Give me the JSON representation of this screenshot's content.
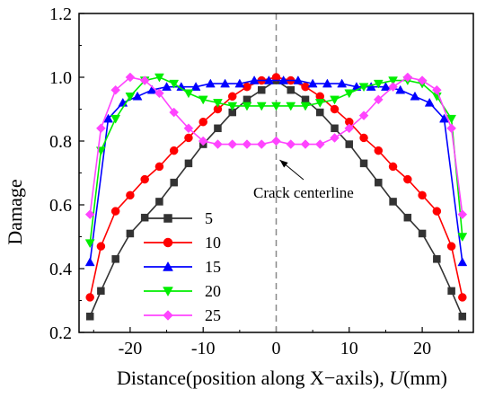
{
  "chart_data": {
    "type": "line",
    "xlabel": "Distance(position along X−axils), U(mm)",
    "xlabel_parts": {
      "prefix": "Distance(position along X−axils), ",
      "var": "U",
      "suffix": "(mm)"
    },
    "ylabel": "Damage",
    "xlim": [
      -27,
      27
    ],
    "ylim": [
      0.2,
      1.2
    ],
    "xticks": [
      -20,
      -10,
      0,
      10,
      20
    ],
    "yticks": [
      0.2,
      0.4,
      0.6,
      0.8,
      1.0,
      1.2
    ],
    "xtick_labels": [
      "-20",
      "-10",
      "0",
      "10",
      "20"
    ],
    "ytick_labels": [
      "0.2",
      "0.4",
      "0.6",
      "0.8",
      "1.0",
      "1.2"
    ],
    "grid": false,
    "legend_position": "bottom-left",
    "annotation": {
      "text": "Crack centerline",
      "x": 0
    },
    "series": [
      {
        "name": "5",
        "color": "#333333",
        "marker": "square",
        "x": [
          -25.5,
          -24,
          -22,
          -20,
          -18,
          -16,
          -14,
          -12,
          -10,
          -8,
          -6,
          -4,
          -2,
          0,
          2,
          4,
          6,
          8,
          10,
          12,
          14,
          16,
          18,
          20,
          22,
          24,
          25.5
        ],
        "y": [
          0.25,
          0.33,
          0.43,
          0.51,
          0.56,
          0.61,
          0.67,
          0.73,
          0.79,
          0.84,
          0.89,
          0.93,
          0.96,
          0.99,
          0.96,
          0.93,
          0.89,
          0.84,
          0.79,
          0.73,
          0.67,
          0.61,
          0.56,
          0.51,
          0.43,
          0.33,
          0.25
        ]
      },
      {
        "name": "10",
        "color": "#ff0000",
        "marker": "circle",
        "x": [
          -25.5,
          -24,
          -22,
          -20,
          -18,
          -16,
          -14,
          -12,
          -10,
          -8,
          -6,
          -4,
          -2,
          0,
          2,
          4,
          6,
          8,
          10,
          12,
          14,
          16,
          18,
          20,
          22,
          24,
          25.5
        ],
        "y": [
          0.31,
          0.47,
          0.58,
          0.63,
          0.68,
          0.72,
          0.77,
          0.81,
          0.86,
          0.9,
          0.94,
          0.97,
          0.99,
          1.0,
          0.99,
          0.97,
          0.94,
          0.9,
          0.86,
          0.81,
          0.77,
          0.72,
          0.68,
          0.63,
          0.58,
          0.47,
          0.31
        ]
      },
      {
        "name": "15",
        "color": "#0000ff",
        "marker": "triangle-up",
        "x": [
          -25.5,
          -23,
          -21,
          -19,
          -17,
          -15,
          -13,
          -11,
          -9,
          -7,
          -5,
          -3,
          -1,
          1,
          3,
          5,
          7,
          9,
          11,
          13,
          15,
          17,
          19,
          21,
          23,
          25.5
        ],
        "y": [
          0.42,
          0.87,
          0.92,
          0.94,
          0.96,
          0.97,
          0.97,
          0.97,
          0.98,
          0.98,
          0.98,
          0.99,
          0.99,
          0.99,
          0.99,
          0.98,
          0.98,
          0.98,
          0.97,
          0.97,
          0.97,
          0.96,
          0.94,
          0.92,
          0.87,
          0.42
        ]
      },
      {
        "name": "20",
        "color": "#00ee00",
        "marker": "triangle-down",
        "x": [
          -25.5,
          -24,
          -22,
          -20,
          -18,
          -16,
          -14,
          -12,
          -10,
          -8,
          -6,
          -4,
          -2,
          0,
          2,
          4,
          6,
          8,
          10,
          12,
          14,
          16,
          18,
          20,
          22,
          24,
          25.5
        ],
        "y": [
          0.48,
          0.77,
          0.87,
          0.94,
          0.99,
          1.0,
          0.98,
          0.95,
          0.93,
          0.92,
          0.91,
          0.91,
          0.91,
          0.91,
          0.91,
          0.91,
          0.92,
          0.93,
          0.95,
          0.97,
          0.98,
          0.99,
          0.99,
          0.98,
          0.94,
          0.87,
          0.5
        ]
      },
      {
        "name": "25",
        "color": "#ff44ff",
        "marker": "diamond",
        "x": [
          -25.5,
          -24,
          -22,
          -20,
          -18,
          -16,
          -14,
          -12,
          -10,
          -8,
          -6,
          -4,
          -2,
          0,
          2,
          4,
          6,
          8,
          10,
          12,
          14,
          16,
          18,
          20,
          22,
          24,
          25.5
        ],
        "y": [
          0.57,
          0.84,
          0.96,
          1.0,
          0.99,
          0.95,
          0.89,
          0.84,
          0.8,
          0.79,
          0.79,
          0.79,
          0.79,
          0.8,
          0.79,
          0.79,
          0.79,
          0.81,
          0.84,
          0.88,
          0.93,
          0.97,
          1.0,
          0.99,
          0.96,
          0.84,
          0.57
        ]
      }
    ]
  }
}
